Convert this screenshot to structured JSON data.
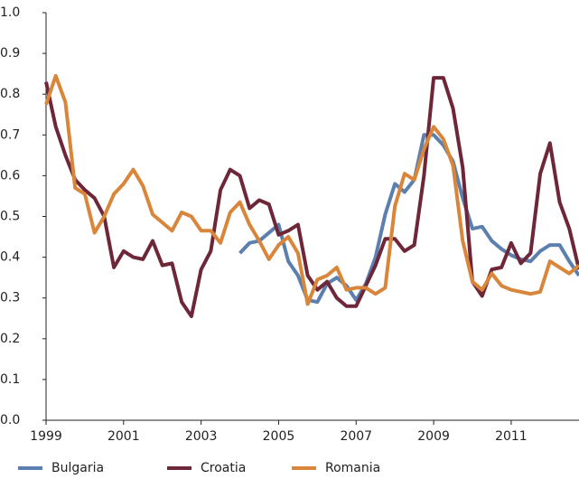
{
  "chart_data": {
    "type": "line",
    "x": [
      1999,
      1999.25,
      1999.5,
      1999.75,
      2000,
      2000.25,
      2000.5,
      2000.75,
      2001,
      2001.25,
      2001.5,
      2001.75,
      2002,
      2002.25,
      2002.5,
      2002.75,
      2003,
      2003.25,
      2003.5,
      2003.75,
      2004,
      2004.25,
      2004.5,
      2004.75,
      2005,
      2005.25,
      2005.5,
      2005.75,
      2006,
      2006.25,
      2006.5,
      2006.75,
      2007,
      2007.25,
      2007.5,
      2007.75,
      2008,
      2008.25,
      2008.5,
      2008.75,
      2009,
      2009.25,
      2009.5,
      2009.75,
      2010,
      2010.25,
      2010.5,
      2010.75,
      2011,
      2011.25,
      2011.5,
      2011.75,
      2012,
      2012.25,
      2012.5,
      2012.75
    ],
    "series": [
      {
        "name": "Bulgaria",
        "color": "#5b7fae",
        "values": [
          null,
          null,
          null,
          null,
          null,
          null,
          null,
          null,
          null,
          null,
          null,
          null,
          null,
          null,
          null,
          null,
          null,
          null,
          null,
          null,
          0.41,
          0.435,
          0.44,
          0.46,
          0.48,
          0.39,
          0.355,
          0.295,
          0.29,
          0.335,
          0.35,
          0.33,
          0.295,
          0.335,
          0.4,
          0.505,
          0.58,
          0.56,
          0.59,
          0.7,
          0.7,
          0.675,
          0.635,
          0.545,
          0.47,
          0.475,
          0.44,
          0.42,
          0.405,
          0.395,
          0.39,
          0.415,
          0.43,
          0.43,
          0.39,
          0.355
        ]
      },
      {
        "name": "Croatia",
        "color": "#6e2639",
        "values": [
          0.83,
          0.72,
          0.65,
          0.59,
          0.565,
          0.545,
          0.5,
          0.375,
          0.415,
          0.4,
          0.395,
          0.44,
          0.38,
          0.385,
          0.29,
          0.255,
          0.37,
          0.415,
          0.565,
          0.615,
          0.6,
          0.52,
          0.54,
          0.53,
          0.455,
          0.465,
          0.48,
          0.355,
          0.32,
          0.34,
          0.3,
          0.28,
          0.28,
          0.33,
          0.38,
          0.445,
          0.445,
          0.415,
          0.43,
          0.6,
          0.84,
          0.84,
          0.765,
          0.62,
          0.34,
          0.305,
          0.37,
          0.375,
          0.435,
          0.385,
          0.41,
          0.605,
          0.68,
          0.535,
          0.47,
          0.37
        ]
      },
      {
        "name": "Romania",
        "color": "#d9863b",
        "values": [
          0.775,
          0.845,
          0.78,
          0.57,
          0.555,
          0.46,
          0.5,
          0.555,
          0.58,
          0.615,
          0.575,
          0.505,
          0.485,
          0.465,
          0.51,
          0.5,
          0.465,
          0.465,
          0.435,
          0.51,
          0.535,
          0.48,
          0.44,
          0.395,
          0.43,
          0.45,
          0.41,
          0.285,
          0.345,
          0.355,
          0.375,
          0.32,
          0.325,
          0.325,
          0.31,
          0.325,
          0.525,
          0.605,
          0.59,
          0.665,
          0.72,
          0.69,
          0.625,
          0.44,
          0.34,
          0.32,
          0.36,
          0.33,
          0.32,
          0.315,
          0.31,
          0.315,
          0.39,
          0.375,
          0.36,
          0.38
        ]
      }
    ],
    "xlim": [
      1999,
      2012.75
    ],
    "xticks": [
      1999,
      2001,
      2003,
      2005,
      2007,
      2009,
      2011
    ],
    "ylim": [
      0,
      1
    ],
    "yticks": [
      {
        "value": 0,
        "label": "0.0"
      },
      0.1,
      0.2,
      0.3,
      0.4,
      0.5,
      0.6,
      0.7,
      0.8,
      0.9,
      {
        "value": 1,
        "label": "1.0"
      }
    ],
    "grid": false,
    "legend": "bottom"
  }
}
